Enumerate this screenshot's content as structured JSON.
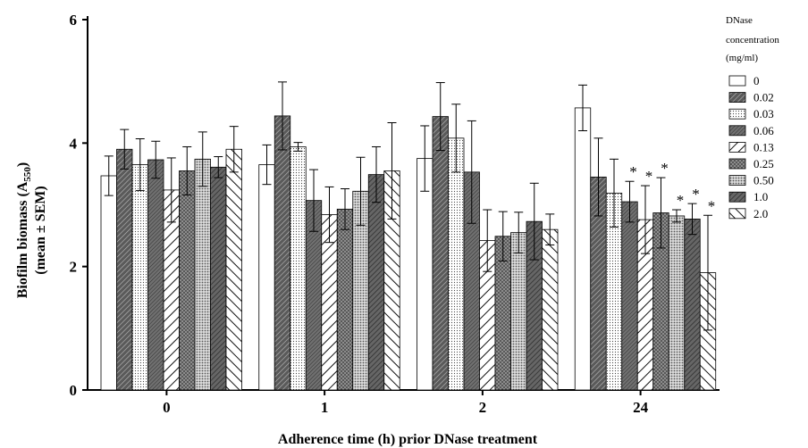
{
  "chart_data": {
    "type": "bar",
    "xlabel": "Adherence time (h) prior DNase treatment",
    "ylabel_line1": "Biofilm biomass (A",
    "ylabel_sub": "550",
    "ylabel_close": ")",
    "ylabel_line2": "(mean ± SEM)",
    "ylim": [
      0,
      6
    ],
    "yticks": [
      "0",
      "2",
      "4",
      "6"
    ],
    "categories": [
      "0",
      "1",
      "2",
      "24"
    ],
    "legend_title": [
      "DNase",
      "concentration",
      "(mg/ml)"
    ],
    "legend_placement": "right",
    "significance_marker": "*",
    "series": [
      {
        "name": "0",
        "pattern": "white",
        "values": [
          3.47,
          3.65,
          3.75,
          4.57
        ],
        "errors": [
          0.32,
          0.32,
          0.53,
          0.37
        ],
        "sig": [
          false,
          false,
          false,
          false
        ]
      },
      {
        "name": "0.02",
        "pattern": "dark-diag",
        "values": [
          3.9,
          4.44,
          4.43,
          3.45
        ],
        "errors": [
          0.32,
          0.55,
          0.55,
          0.63
        ],
        "sig": [
          false,
          false,
          false,
          false
        ]
      },
      {
        "name": "0.03",
        "pattern": "dots",
        "values": [
          3.65,
          3.94,
          4.08,
          3.19
        ],
        "errors": [
          0.42,
          0.07,
          0.55,
          0.55
        ],
        "sig": [
          false,
          false,
          false,
          false
        ]
      },
      {
        "name": "0.06",
        "pattern": "mid-diag",
        "values": [
          3.73,
          3.07,
          3.53,
          3.05
        ],
        "errors": [
          0.3,
          0.5,
          0.83,
          0.33
        ],
        "sig": [
          false,
          false,
          false,
          true
        ]
      },
      {
        "name": "0.13",
        "pattern": "white-diag",
        "values": [
          3.24,
          2.84,
          2.42,
          2.76
        ],
        "errors": [
          0.52,
          0.45,
          0.5,
          0.55
        ],
        "sig": [
          false,
          false,
          false,
          true
        ]
      },
      {
        "name": "0.25",
        "pattern": "cross",
        "values": [
          3.55,
          2.93,
          2.49,
          2.87
        ],
        "errors": [
          0.39,
          0.33,
          0.4,
          0.57
        ],
        "sig": [
          false,
          false,
          false,
          true
        ]
      },
      {
        "name": "0.50",
        "pattern": "dense-dots",
        "values": [
          3.74,
          3.22,
          2.55,
          2.82
        ],
        "errors": [
          0.44,
          0.55,
          0.33,
          0.1
        ],
        "sig": [
          false,
          false,
          false,
          true
        ]
      },
      {
        "name": "1.0",
        "pattern": "dark-diag-2",
        "values": [
          3.61,
          3.49,
          2.73,
          2.77
        ],
        "errors": [
          0.17,
          0.45,
          0.62,
          0.25
        ],
        "sig": [
          false,
          false,
          false,
          true
        ]
      },
      {
        "name": "2.0",
        "pattern": "wide-diag",
        "values": [
          3.9,
          3.55,
          2.6,
          1.9
        ],
        "errors": [
          0.37,
          0.78,
          0.25,
          0.93
        ],
        "sig": [
          false,
          false,
          false,
          true
        ]
      }
    ]
  }
}
